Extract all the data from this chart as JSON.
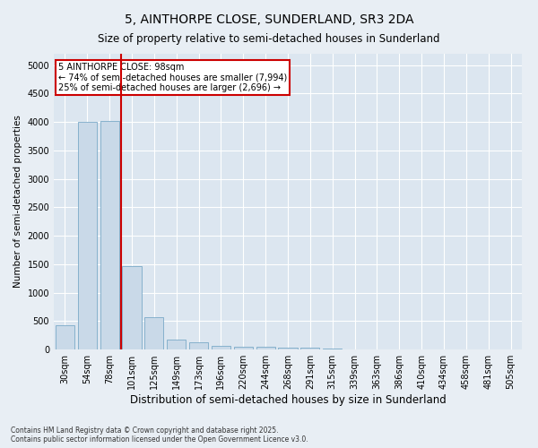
{
  "title": "5, AINTHORPE CLOSE, SUNDERLAND, SR3 2DA",
  "subtitle": "Size of property relative to semi-detached houses in Sunderland",
  "xlabel": "Distribution of semi-detached houses by size in Sunderland",
  "ylabel": "Number of semi-detached properties",
  "categories": [
    "30sqm",
    "54sqm",
    "78sqm",
    "101sqm",
    "125sqm",
    "149sqm",
    "173sqm",
    "196sqm",
    "220sqm",
    "244sqm",
    "268sqm",
    "291sqm",
    "315sqm",
    "339sqm",
    "363sqm",
    "386sqm",
    "410sqm",
    "434sqm",
    "458sqm",
    "481sqm",
    "505sqm"
  ],
  "values": [
    430,
    4000,
    4020,
    1470,
    560,
    170,
    120,
    70,
    50,
    40,
    30,
    25,
    10,
    5,
    3,
    2,
    1,
    1,
    0,
    0,
    0
  ],
  "bar_color": "#c9d9e8",
  "bar_edge_color": "#7aaac8",
  "redline_x": 2.5,
  "redline_label": "5 AINTHORPE CLOSE: 98sqm",
  "annotation_line1": "← 74% of semi-detached houses are smaller (7,994)",
  "annotation_line2": "25% of semi-detached houses are larger (2,696) →",
  "annotation_box_color": "#ffffff",
  "annotation_box_edge_color": "#cc0000",
  "ylim": [
    0,
    5200
  ],
  "yticks": [
    0,
    500,
    1000,
    1500,
    2000,
    2500,
    3000,
    3500,
    4000,
    4500,
    5000
  ],
  "footnote1": "Contains HM Land Registry data © Crown copyright and database right 2025.",
  "footnote2": "Contains public sector information licensed under the Open Government Licence v3.0.",
  "bg_color": "#e8eef4",
  "plot_bg_color": "#dce6f0",
  "grid_color": "#ffffff",
  "title_fontsize": 10,
  "subtitle_fontsize": 8.5,
  "tick_fontsize": 7,
  "ylabel_fontsize": 7.5,
  "xlabel_fontsize": 8.5,
  "footnote_fontsize": 5.5,
  "annotation_fontsize": 7
}
